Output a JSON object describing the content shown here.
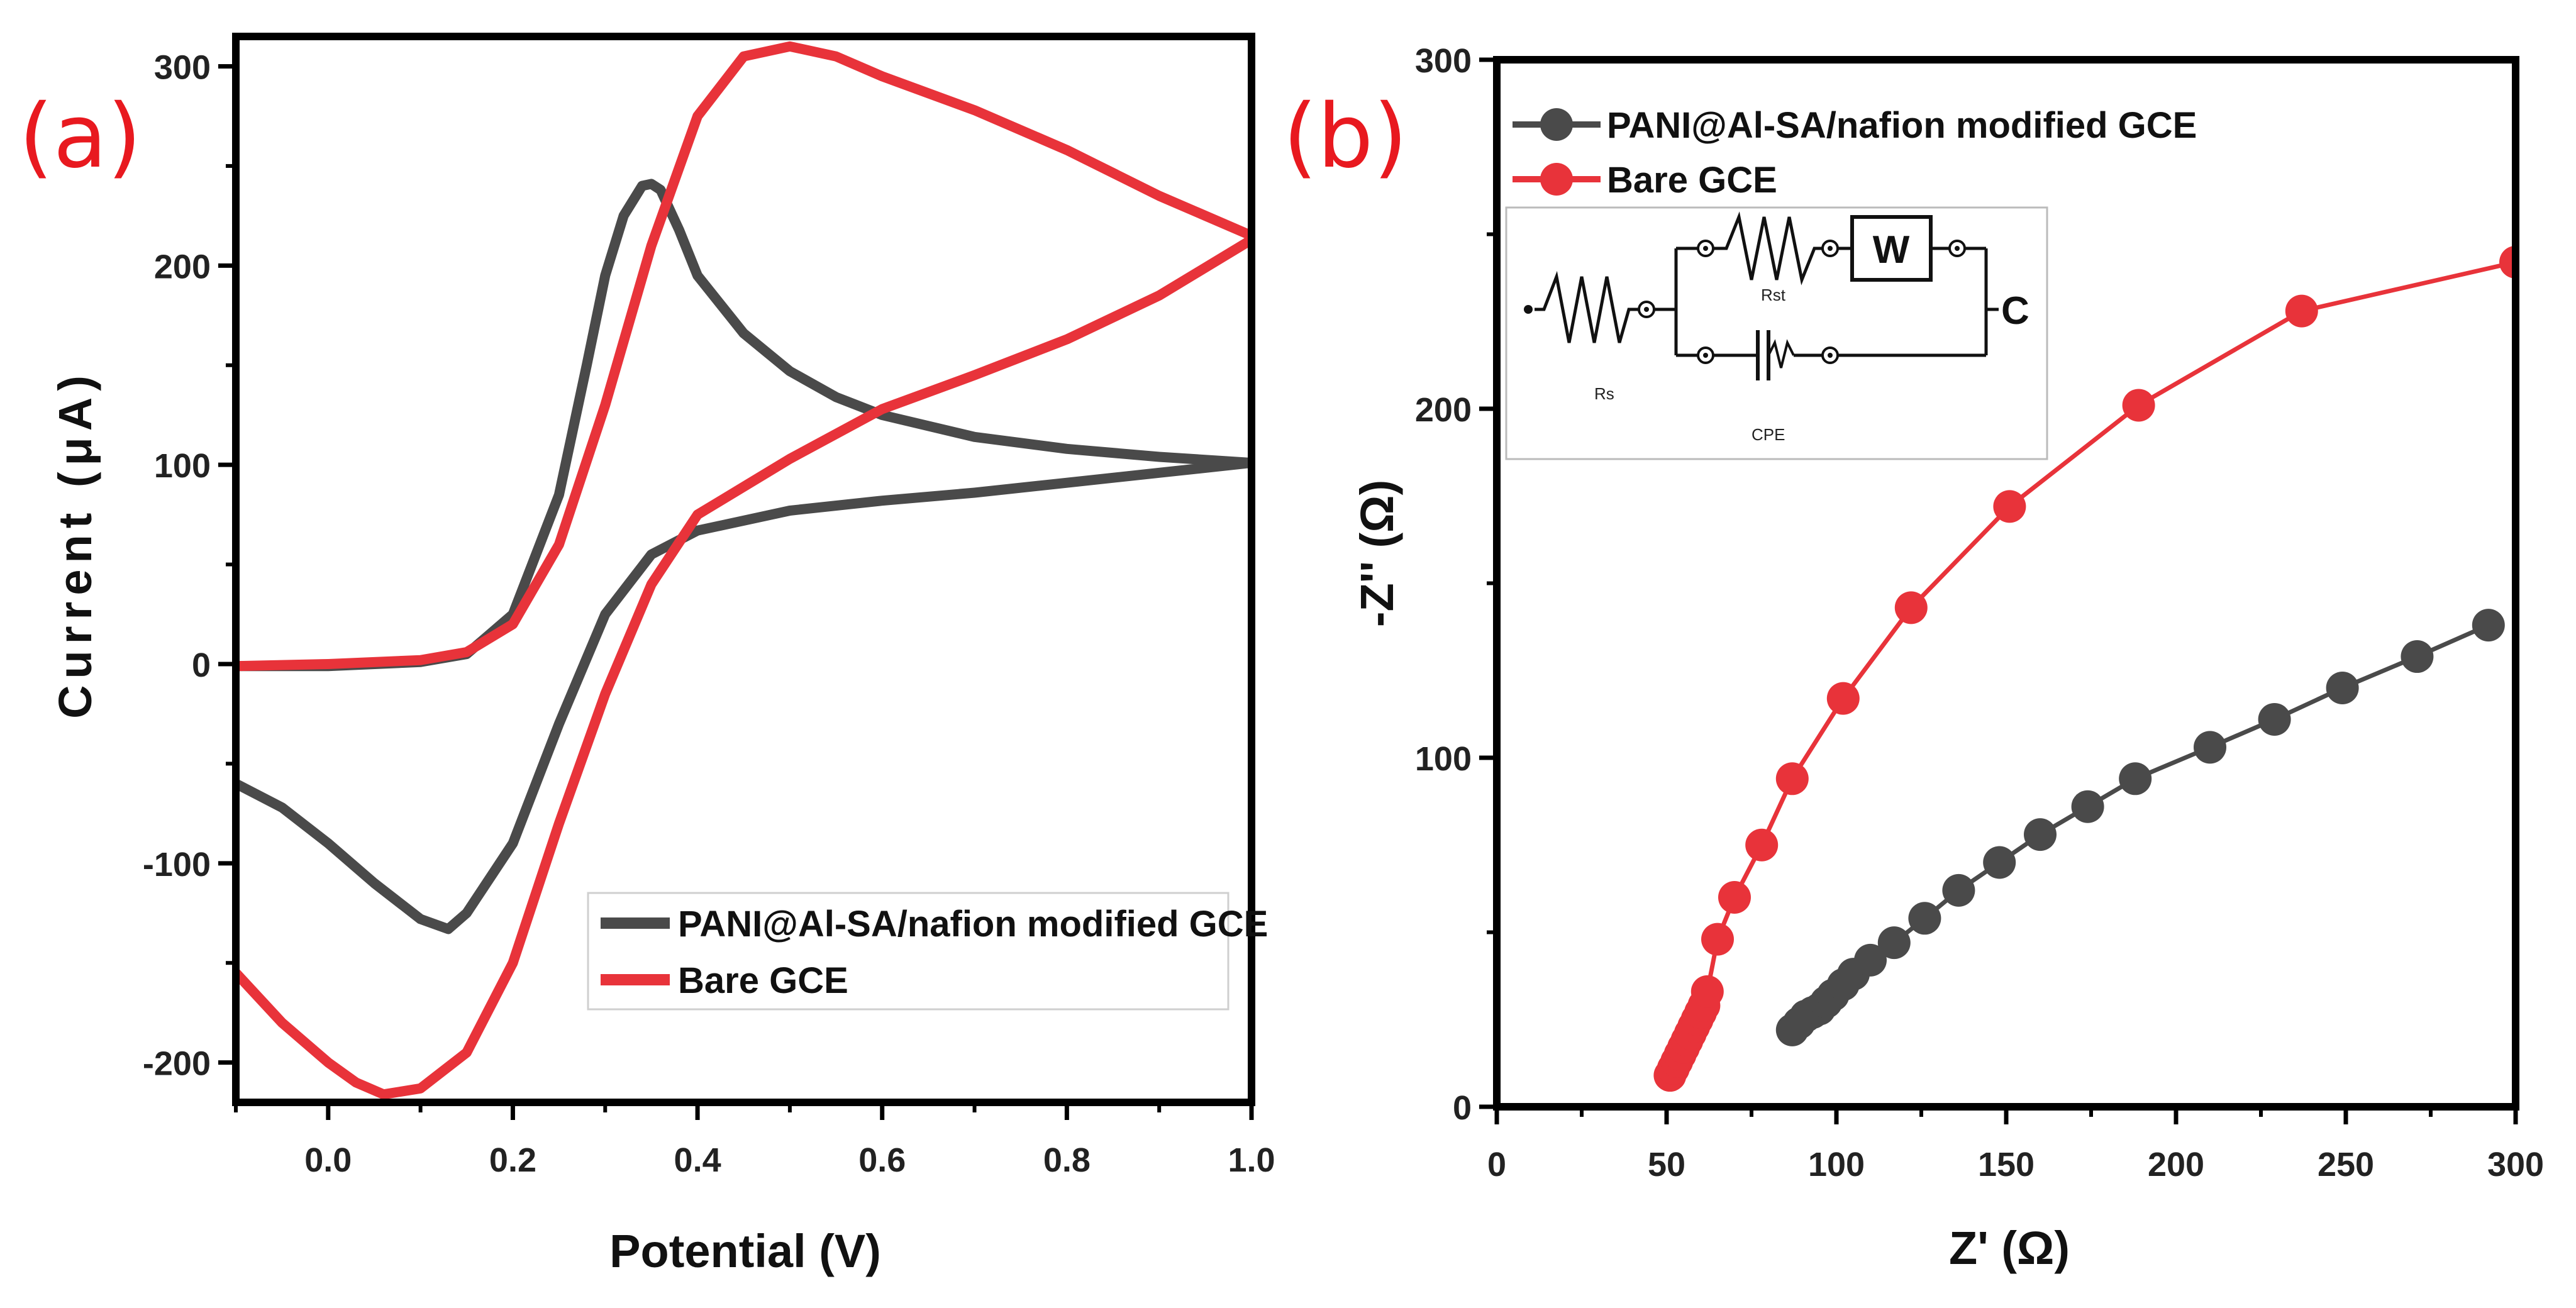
{
  "colors": {
    "dark": "#4a4a4a",
    "red": "#e8333a",
    "panel_label": "#e8191f",
    "frame": "#000000"
  },
  "chart_data": [
    {
      "panel_label": "(a)",
      "type": "line",
      "title": "",
      "xlabel": "Potential (V)",
      "ylabel": "Current (μA)",
      "xlim": [
        -0.1,
        1.0
      ],
      "ylim": [
        -220,
        315
      ],
      "x_ticks": [
        0.0,
        0.2,
        0.4,
        0.6,
        0.8,
        1.0
      ],
      "x_tick_labels": [
        "0.0",
        "0.2",
        "0.4",
        "0.6",
        "0.8",
        "1.0"
      ],
      "y_ticks": [
        -200,
        -100,
        0,
        100,
        200,
        300
      ],
      "y_tick_labels": [
        "-200",
        "-100",
        "0",
        "100",
        "200",
        "300"
      ],
      "legend_position": "bottom-right",
      "series": [
        {
          "name": "PANI@Al-SA/nafion modified GCE",
          "color": "#4a4a4a",
          "x": [
            -0.1,
            0.0,
            0.1,
            0.15,
            0.2,
            0.25,
            0.28,
            0.3,
            0.32,
            0.34,
            0.35,
            0.36,
            0.38,
            0.4,
            0.45,
            0.5,
            0.55,
            0.6,
            0.7,
            0.8,
            0.9,
            1.0,
            1.0,
            0.9,
            0.8,
            0.7,
            0.6,
            0.5,
            0.4,
            0.35,
            0.3,
            0.25,
            0.2,
            0.15,
            0.13,
            0.1,
            0.05,
            0.0,
            -0.05,
            -0.1
          ],
          "y": [
            -1,
            -1,
            1,
            5,
            25,
            85,
            150,
            195,
            225,
            240,
            241,
            238,
            218,
            195,
            166,
            147,
            134,
            125,
            114,
            108,
            104,
            101,
            101,
            96,
            91,
            86,
            82,
            77,
            67,
            55,
            25,
            -30,
            -90,
            -125,
            -133,
            -128,
            -110,
            -90,
            -72,
            -60
          ]
        },
        {
          "name": "Bare GCE",
          "color": "#e8333a",
          "x": [
            -0.1,
            0.0,
            0.1,
            0.15,
            0.2,
            0.25,
            0.3,
            0.35,
            0.4,
            0.45,
            0.5,
            0.55,
            0.6,
            0.7,
            0.8,
            0.9,
            1.0,
            1.0,
            0.9,
            0.8,
            0.7,
            0.6,
            0.5,
            0.4,
            0.35,
            0.3,
            0.25,
            0.2,
            0.15,
            0.1,
            0.06,
            0.03,
            0.0,
            -0.05,
            -0.1
          ],
          "y": [
            -1,
            0,
            2,
            6,
            20,
            60,
            130,
            210,
            275,
            305,
            310,
            305,
            295,
            278,
            258,
            235,
            215,
            213,
            185,
            163,
            145,
            128,
            103,
            75,
            40,
            -15,
            -80,
            -150,
            -195,
            -213,
            -216,
            -210,
            -200,
            -180,
            -155
          ]
        }
      ]
    },
    {
      "panel_label": "(b)",
      "type": "scatter",
      "title": "",
      "xlabel": "Z' (Ω)",
      "ylabel": "-Z'' (Ω)",
      "xlim": [
        0,
        300
      ],
      "ylim": [
        0,
        300
      ],
      "x_ticks": [
        0,
        50,
        100,
        150,
        200,
        250,
        300
      ],
      "x_tick_labels": [
        "0",
        "50",
        "100",
        "150",
        "200",
        "250",
        "300"
      ],
      "y_ticks": [
        0,
        100,
        200,
        300
      ],
      "y_tick_labels": [
        "0",
        "100",
        "200",
        "300"
      ],
      "legend_position": "top-left",
      "series": [
        {
          "name": "PANI@Al-SA/nafion modified GCE",
          "color": "#4a4a4a",
          "x": [
            87,
            89,
            91,
            93,
            95,
            97,
            99,
            102,
            105,
            110,
            117,
            126,
            136,
            148,
            160,
            174,
            188,
            210,
            229,
            249,
            271,
            292
          ],
          "y": [
            22,
            24,
            26,
            27,
            28,
            30,
            32,
            35,
            38,
            42,
            47,
            54,
            62,
            70,
            78,
            86,
            94,
            103,
            111,
            120,
            129,
            138
          ]
        },
        {
          "name": "Bare GCE",
          "color": "#e8333a",
          "x": [
            51,
            52,
            53,
            54,
            55,
            56,
            57,
            58,
            59,
            60,
            61,
            62,
            65,
            70,
            78,
            87,
            102,
            122,
            151,
            189,
            237,
            300
          ],
          "y": [
            9,
            11,
            13,
            15,
            17,
            19,
            21,
            23,
            25,
            27,
            29,
            33,
            48,
            60,
            75,
            94,
            117,
            143,
            172,
            201,
            228,
            242
          ]
        }
      ],
      "inset_circuit": {
        "labels": {
          "rs": "Rs",
          "rst": "Rst",
          "w": "W",
          "cpe": "CPE",
          "terminal": "C"
        }
      }
    }
  ]
}
